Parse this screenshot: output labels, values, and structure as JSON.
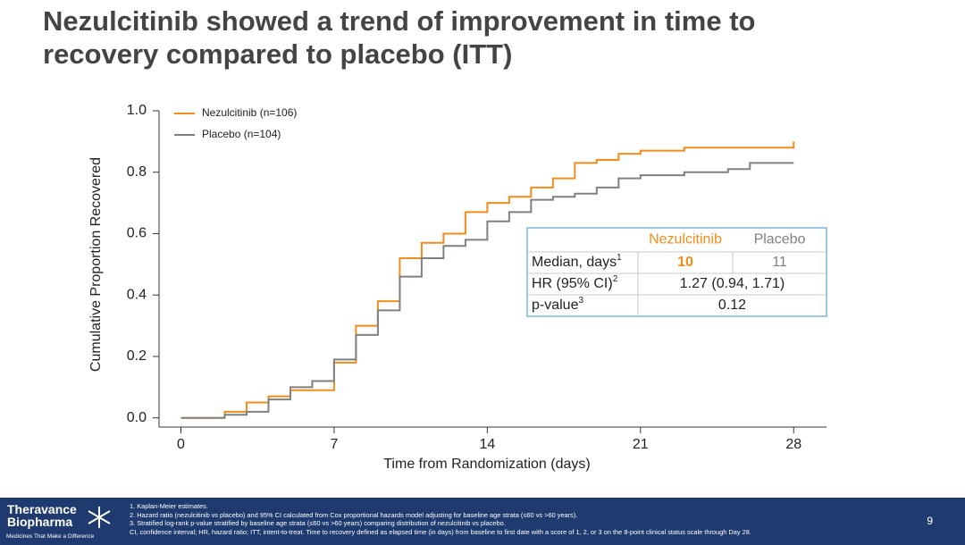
{
  "header": {
    "title": [
      "Nezulcitinib showed a trend of improvement in time to",
      "recovery compared to placebo (ITT)"
    ]
  },
  "chart_data": {
    "type": "step",
    "x_label": "Time from Randomization (days)",
    "y_label": "Cumulative Proportion Recovered",
    "xlim": [
      -1,
      29.5
    ],
    "ylim": [
      -0.03,
      1.0
    ],
    "xticks": [
      0,
      7,
      14,
      21,
      28
    ],
    "yticks": [
      {
        "value": 0,
        "label": "0.0"
      },
      0.2,
      0.4,
      0.6,
      0.8,
      {
        "value": 1,
        "label": "1.0"
      }
    ],
    "legend": "top-left",
    "series": [
      {
        "name": "Nezulcitinib (n=106)",
        "color": "#f28c1c",
        "x": [
          0,
          2,
          3,
          4,
          5,
          7,
          8,
          9,
          10,
          11,
          12,
          13,
          14,
          15,
          16,
          17,
          18,
          19,
          20,
          21,
          23,
          28
        ],
        "values": [
          0,
          0.02,
          0.05,
          0.07,
          0.09,
          0.18,
          0.3,
          0.38,
          0.52,
          0.57,
          0.6,
          0.67,
          0.7,
          0.72,
          0.75,
          0.78,
          0.83,
          0.84,
          0.86,
          0.87,
          0.88,
          0.9
        ]
      },
      {
        "name": "Placebo (n=104)",
        "color": "#808080",
        "x": [
          0,
          2,
          3,
          4,
          5,
          6,
          7,
          8,
          9,
          10,
          11,
          12,
          13,
          14,
          15,
          16,
          17,
          18,
          19,
          20,
          21,
          23,
          25,
          26,
          28
        ],
        "values": [
          0,
          0.01,
          0.02,
          0.06,
          0.1,
          0.12,
          0.19,
          0.27,
          0.35,
          0.46,
          0.52,
          0.56,
          0.58,
          0.64,
          0.67,
          0.71,
          0.72,
          0.73,
          0.75,
          0.78,
          0.79,
          0.8,
          0.81,
          0.83,
          0.83
        ]
      }
    ],
    "table": {
      "header": [
        "Nezulcitinib",
        "Placebo"
      ],
      "rows": [
        {
          "label": "Median, days",
          "sup": "1",
          "cells": [
            10,
            11
          ]
        },
        {
          "label": "HR (95% CI)",
          "sup": "2",
          "cells": [
            "1.27 (0.94, 1.71)"
          ]
        },
        {
          "label": "p-value",
          "sup": "3",
          "cells": [
            0.12
          ]
        }
      ]
    }
  },
  "footer": {
    "brand": [
      "Theravance",
      "Biopharma"
    ],
    "tagline": "Medicines That Make a Difference",
    "notes": [
      "1. Kaplan-Meier estimates.",
      "2. Hazard ratio (nezulcitinib vs placebo) and 95% CI calculated from Cox proportional hazards model adjusting for baseline age strata (≤60 vs >60 years).",
      "3. Stratified log-rank p-value stratified by baseline age strata (≤60 vs >60 years) comparing distribution of nezulcitinib vs placebo.",
      "CI, confidence interval; HR, hazard ratio; ITT, intent-to-treat. Time to recovery defined as elapsed time (in days) from baseline to first date with a score of 1, 2, or 3 on the 8-point clinical status scale through Day 28."
    ],
    "page": "9"
  }
}
